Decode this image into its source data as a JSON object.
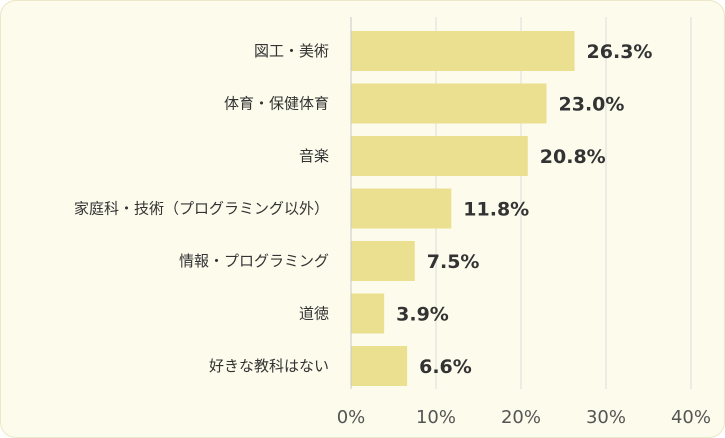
{
  "chart_data": {
    "type": "bar",
    "orientation": "horizontal",
    "categories": [
      "図工・美術",
      "体育・保健体育",
      "音楽",
      "家庭科・技術（プログラミング以外）",
      "情報・プログラミング",
      "道徳",
      "好きな教科はない"
    ],
    "values": [
      26.3,
      23.0,
      20.8,
      11.8,
      7.5,
      3.9,
      6.6
    ],
    "value_labels": [
      "26.3%",
      "23.0%",
      "20.8%",
      "11.8%",
      "7.5%",
      "3.9%",
      "6.6%"
    ],
    "xlim": [
      0,
      40
    ],
    "ticks": [
      0,
      10,
      20,
      30,
      40
    ],
    "tick_labels": [
      "0%",
      "10%",
      "20%",
      "30%",
      "40%"
    ],
    "grid": true,
    "legend": "none",
    "colors": {
      "bar": "#ebe08f",
      "background": "#fdfbec",
      "grid": "#dcdcdc",
      "text": "#333333"
    }
  }
}
